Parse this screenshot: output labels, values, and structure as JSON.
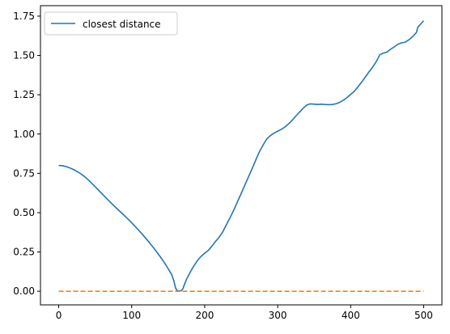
{
  "chart_data": {
    "type": "line",
    "title": "",
    "xlabel": "",
    "ylabel": "",
    "xlim": [
      -25,
      525
    ],
    "ylim": [
      -0.0865,
      1.8165
    ],
    "xticks": [
      0,
      100,
      200,
      300,
      400,
      500
    ],
    "xtick_labels": [
      "0",
      "100",
      "200",
      "300",
      "400",
      "500"
    ],
    "yticks": [
      0.0,
      0.25,
      0.5,
      0.75,
      1.0,
      1.25,
      1.5,
      1.75
    ],
    "ytick_labels": [
      "0.00",
      "0.25",
      "0.50",
      "0.75",
      "1.00",
      "1.25",
      "1.50",
      "1.75"
    ],
    "grid": false,
    "legend_location": "upper left",
    "series": [
      {
        "name": "closest distance",
        "color": "#1f77b4",
        "style": "solid",
        "points": [
          [
            0,
            0.8
          ],
          [
            5,
            0.799
          ],
          [
            10,
            0.793
          ],
          [
            15,
            0.785
          ],
          [
            20,
            0.775
          ],
          [
            25,
            0.762
          ],
          [
            30,
            0.748
          ],
          [
            35,
            0.731
          ],
          [
            40,
            0.711
          ],
          [
            45,
            0.688
          ],
          [
            50,
            0.665
          ],
          [
            55,
            0.641
          ],
          [
            60,
            0.617
          ],
          [
            65,
            0.593
          ],
          [
            70,
            0.57
          ],
          [
            75,
            0.547
          ],
          [
            80,
            0.525
          ],
          [
            85,
            0.503
          ],
          [
            90,
            0.481
          ],
          [
            95,
            0.459
          ],
          [
            100,
            0.436
          ],
          [
            105,
            0.411
          ],
          [
            110,
            0.386
          ],
          [
            115,
            0.36
          ],
          [
            120,
            0.333
          ],
          [
            125,
            0.305
          ],
          [
            130,
            0.276
          ],
          [
            135,
            0.246
          ],
          [
            140,
            0.214
          ],
          [
            145,
            0.18
          ],
          [
            150,
            0.143
          ],
          [
            155,
            0.104
          ],
          [
            158,
            0.062
          ],
          [
            160,
            0.022
          ],
          [
            162,
            0.005
          ],
          [
            165,
            0.002
          ],
          [
            168,
            0.004
          ],
          [
            170,
            0.015
          ],
          [
            172,
            0.04
          ],
          [
            175,
            0.075
          ],
          [
            180,
            0.12
          ],
          [
            185,
            0.16
          ],
          [
            190,
            0.195
          ],
          [
            195,
            0.222
          ],
          [
            200,
            0.242
          ],
          [
            205,
            0.26
          ],
          [
            210,
            0.288
          ],
          [
            215,
            0.318
          ],
          [
            220,
            0.345
          ],
          [
            225,
            0.38
          ],
          [
            230,
            0.425
          ],
          [
            235,
            0.47
          ],
          [
            240,
            0.518
          ],
          [
            245,
            0.57
          ],
          [
            250,
            0.622
          ],
          [
            255,
            0.675
          ],
          [
            260,
            0.728
          ],
          [
            265,
            0.78
          ],
          [
            270,
            0.835
          ],
          [
            275,
            0.888
          ],
          [
            280,
            0.93
          ],
          [
            285,
            0.968
          ],
          [
            290,
            0.99
          ],
          [
            295,
            1.006
          ],
          [
            300,
            1.018
          ],
          [
            305,
            1.03
          ],
          [
            310,
            1.045
          ],
          [
            315,
            1.065
          ],
          [
            320,
            1.088
          ],
          [
            325,
            1.115
          ],
          [
            330,
            1.14
          ],
          [
            335,
            1.165
          ],
          [
            340,
            1.185
          ],
          [
            345,
            1.192
          ],
          [
            350,
            1.19
          ],
          [
            355,
            1.188
          ],
          [
            360,
            1.19
          ],
          [
            365,
            1.188
          ],
          [
            370,
            1.187
          ],
          [
            375,
            1.188
          ],
          [
            380,
            1.193
          ],
          [
            385,
            1.202
          ],
          [
            390,
            1.215
          ],
          [
            395,
            1.232
          ],
          [
            400,
            1.252
          ],
          [
            405,
            1.272
          ],
          [
            410,
            1.3
          ],
          [
            415,
            1.33
          ],
          [
            420,
            1.362
          ],
          [
            425,
            1.395
          ],
          [
            430,
            1.425
          ],
          [
            435,
            1.46
          ],
          [
            440,
            1.505
          ],
          [
            445,
            1.515
          ],
          [
            450,
            1.522
          ],
          [
            455,
            1.54
          ],
          [
            460,
            1.555
          ],
          [
            465,
            1.572
          ],
          [
            470,
            1.58
          ],
          [
            475,
            1.585
          ],
          [
            480,
            1.6
          ],
          [
            485,
            1.62
          ],
          [
            490,
            1.645
          ],
          [
            492,
            1.68
          ],
          [
            495,
            1.695
          ],
          [
            500,
            1.72
          ]
        ]
      },
      {
        "name": "",
        "color": "#ff7f0e",
        "style": "dashed",
        "points": [
          [
            0,
            0.0
          ],
          [
            500,
            0.0
          ]
        ]
      }
    ]
  }
}
